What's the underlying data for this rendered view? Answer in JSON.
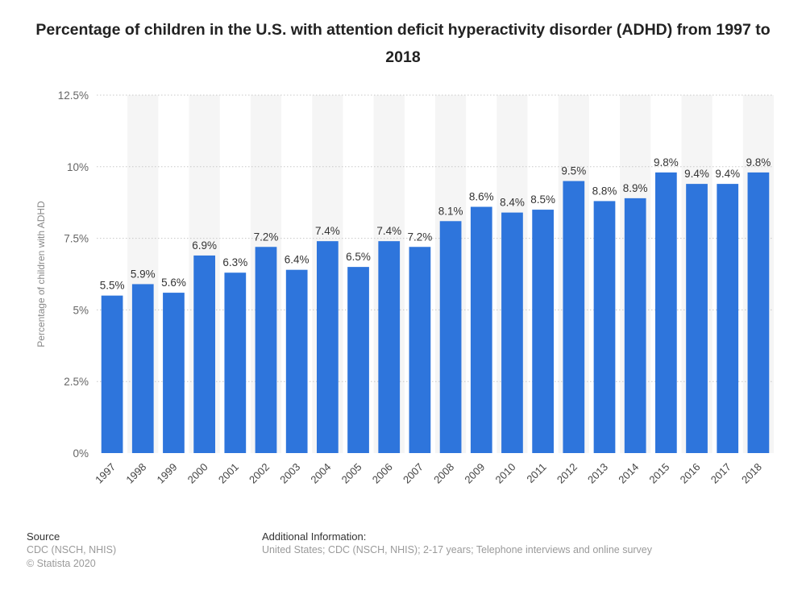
{
  "title": "Percentage of children in the U.S. with attention deficit hyperactivity disorder (ADHD) from 1997 to 2018",
  "chart_data": {
    "type": "bar",
    "title": "Percentage of children in the U.S. with attention deficit hyperactivity disorder (ADHD) from 1997 to 2018",
    "xlabel": "",
    "ylabel": "Percentage of children with ADHD",
    "categories": [
      "1997",
      "1998",
      "1999",
      "2000",
      "2001",
      "2002",
      "2003",
      "2004",
      "2005",
      "2006",
      "2007",
      "2008",
      "2009",
      "2010",
      "2011",
      "2012",
      "2013",
      "2014",
      "2015",
      "2016",
      "2017",
      "2018"
    ],
    "values": [
      5.5,
      5.9,
      5.6,
      6.9,
      6.3,
      7.2,
      6.4,
      7.4,
      6.5,
      7.4,
      7.2,
      8.1,
      8.6,
      8.4,
      8.5,
      9.5,
      8.8,
      8.9,
      9.8,
      9.4,
      9.4,
      9.8
    ],
    "value_labels": [
      "5.5%",
      "5.9%",
      "5.6%",
      "6.9%",
      "6.3%",
      "7.2%",
      "6.4%",
      "7.4%",
      "6.5%",
      "7.4%",
      "7.2%",
      "8.1%",
      "8.6%",
      "8.4%",
      "8.5%",
      "9.5%",
      "8.8%",
      "8.9%",
      "9.8%",
      "9.4%",
      "9.4%",
      "9.8%"
    ],
    "ylim": [
      0,
      12.5
    ],
    "yticks": [
      0,
      2.5,
      5,
      7.5,
      10,
      12.5
    ],
    "ytick_labels": [
      "0%",
      "2.5%",
      "5%",
      "7.5%",
      "10%",
      "12.5%"
    ],
    "grid": true,
    "bar_color": "#2e75dc"
  },
  "footer": {
    "source_heading": "Source",
    "source_lines": [
      "CDC (NSCH, NHIS)",
      "© Statista 2020"
    ],
    "info_heading": "Additional Information:",
    "info_lines": [
      "United States; CDC (NSCH, NHIS); 2-17 years; Telephone interviews and online survey"
    ]
  }
}
